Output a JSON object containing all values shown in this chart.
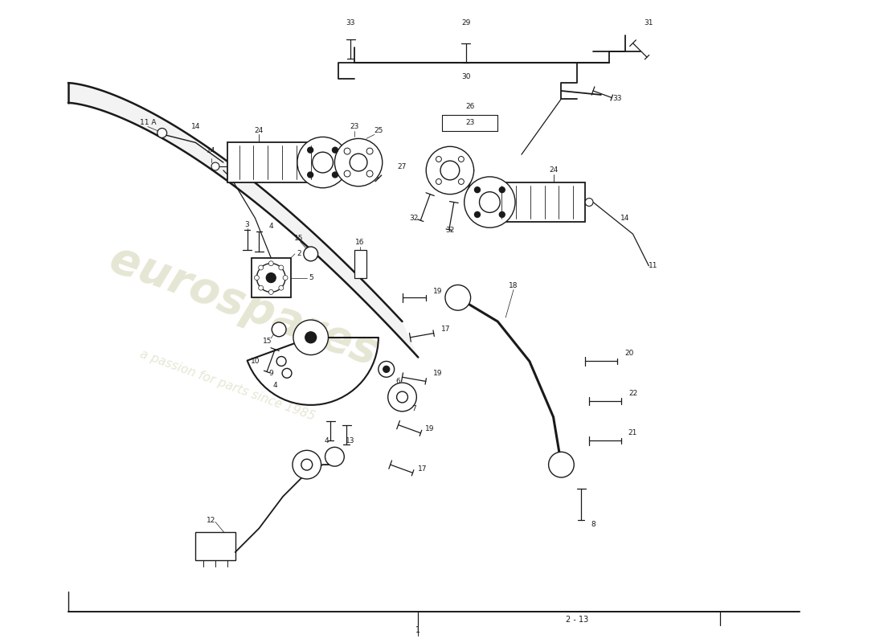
{
  "bg": "#ffffff",
  "lc": "#1a1a1a",
  "wm1": "eurospares",
  "wm2": "a passion for parts since 1985",
  "wmc": "#c8c8a0",
  "border_label": "2 - 13",
  "fig_w": 11.0,
  "fig_h": 8.0,
  "dpi": 100
}
